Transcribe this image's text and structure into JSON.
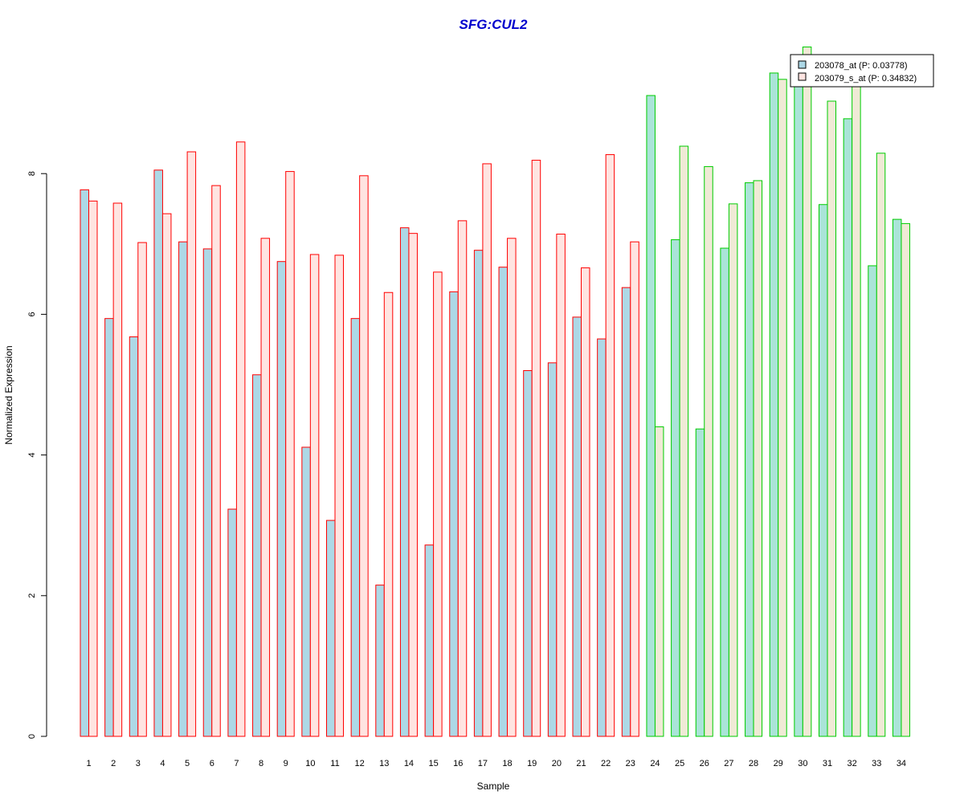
{
  "chart_data": {
    "type": "bar",
    "title": "SFG:CUL2",
    "xlabel": "Sample",
    "ylabel": "Normalized Expression",
    "ylim": [
      0,
      9.8
    ],
    "yticks": [
      0,
      2,
      4,
      6,
      8
    ],
    "grid": false,
    "legend_position": "top-right",
    "categories": [
      "1",
      "2",
      "3",
      "4",
      "5",
      "6",
      "7",
      "8",
      "9",
      "10",
      "11",
      "12",
      "13",
      "14",
      "15",
      "16",
      "17",
      "18",
      "19",
      "20",
      "21",
      "22",
      "23",
      "24",
      "25",
      "26",
      "27",
      "28",
      "29",
      "30",
      "31",
      "32",
      "33",
      "34"
    ],
    "series": [
      {
        "name": "203078_at (P: 0.03778)",
        "values": [
          7.77,
          5.94,
          5.68,
          8.05,
          7.03,
          6.93,
          3.23,
          5.14,
          6.75,
          4.11,
          3.07,
          5.94,
          2.15,
          7.23,
          2.72,
          6.32,
          6.91,
          6.67,
          5.2,
          5.31,
          5.96,
          5.65,
          6.38,
          9.11,
          7.06,
          4.37,
          6.94,
          7.87,
          9.43,
          9.38,
          7.56,
          8.78,
          6.69,
          7.35
        ]
      },
      {
        "name": "203079_s_at (P: 0.34832)",
        "values": [
          7.61,
          7.58,
          7.02,
          7.43,
          8.31,
          7.83,
          8.45,
          7.08,
          8.03,
          6.85,
          6.84,
          7.97,
          6.31,
          7.15,
          6.6,
          7.33,
          8.14,
          7.08,
          8.19,
          7.14,
          6.66,
          8.27,
          7.03,
          4.4,
          8.39,
          8.1,
          7.57,
          7.9,
          9.34,
          9.8,
          9.03,
          9.42,
          8.29,
          7.29
        ]
      }
    ],
    "group_split_after": 23,
    "colors": {
      "title": "#0000CD",
      "series1_fill": "#ADD8E6",
      "series2_fill": "#FFE4E1",
      "group1_border": "#FF0000",
      "group2_series1_fill": "#AAE4D8",
      "group2_series2_fill": "#F0EAD6",
      "group2_border": "#00CC00",
      "axis": "#000000"
    }
  }
}
